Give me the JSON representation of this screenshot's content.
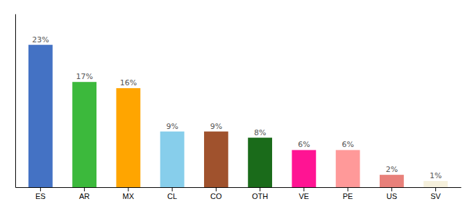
{
  "chart_data": {
    "type": "bar",
    "categories": [
      "ES",
      "AR",
      "MX",
      "CL",
      "CO",
      "OTH",
      "VE",
      "PE",
      "US",
      "SV"
    ],
    "values": [
      23,
      17,
      16,
      9,
      9,
      8,
      6,
      6,
      2,
      1
    ],
    "value_labels": [
      "23%",
      "17%",
      "16%",
      "9%",
      "9%",
      "8%",
      "6%",
      "6%",
      "2%",
      "1%"
    ],
    "colors": [
      "#4472C4",
      "#3CB93C",
      "#FFA500",
      "#87CEEB",
      "#A0522D",
      "#1A6B1A",
      "#FF1493",
      "#FF9999",
      "#E8807A",
      "#F5F0DC"
    ],
    "ylim": [
      0,
      28
    ],
    "data_labels": true,
    "tick_labels": "x",
    "grid": false
  }
}
